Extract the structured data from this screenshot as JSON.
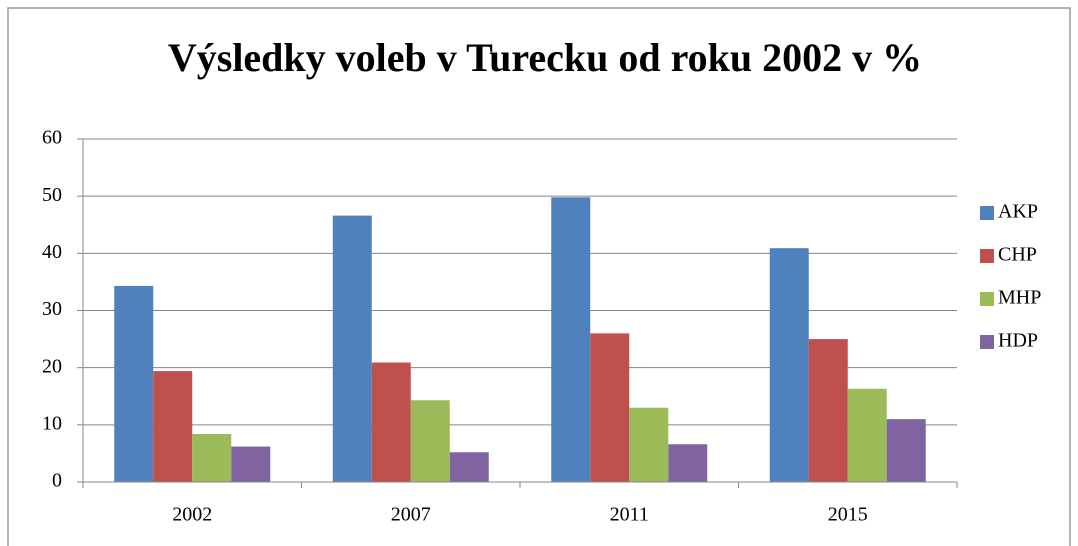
{
  "chart_data": {
    "type": "bar",
    "title": "Výsledky voleb v Turecku od roku 2002 v %",
    "categories": [
      "2002",
      "2007",
      "2011",
      "2015"
    ],
    "series": [
      {
        "name": "AKP",
        "color": "#4f81bd",
        "values": [
          34.3,
          46.6,
          49.8,
          40.9
        ]
      },
      {
        "name": "CHP",
        "color": "#c0504d",
        "values": [
          19.4,
          20.9,
          26.0,
          25.0
        ]
      },
      {
        "name": "MHP",
        "color": "#9bbb59",
        "values": [
          8.4,
          14.3,
          13.0,
          16.3
        ]
      },
      {
        "name": "HDP",
        "color": "#8064a2",
        "values": [
          6.2,
          5.2,
          6.6,
          11.0
        ]
      }
    ],
    "ylim": [
      0,
      60
    ],
    "yticks": [
      0,
      10,
      20,
      30,
      40,
      50,
      60
    ],
    "grid": true,
    "legend": "right"
  }
}
